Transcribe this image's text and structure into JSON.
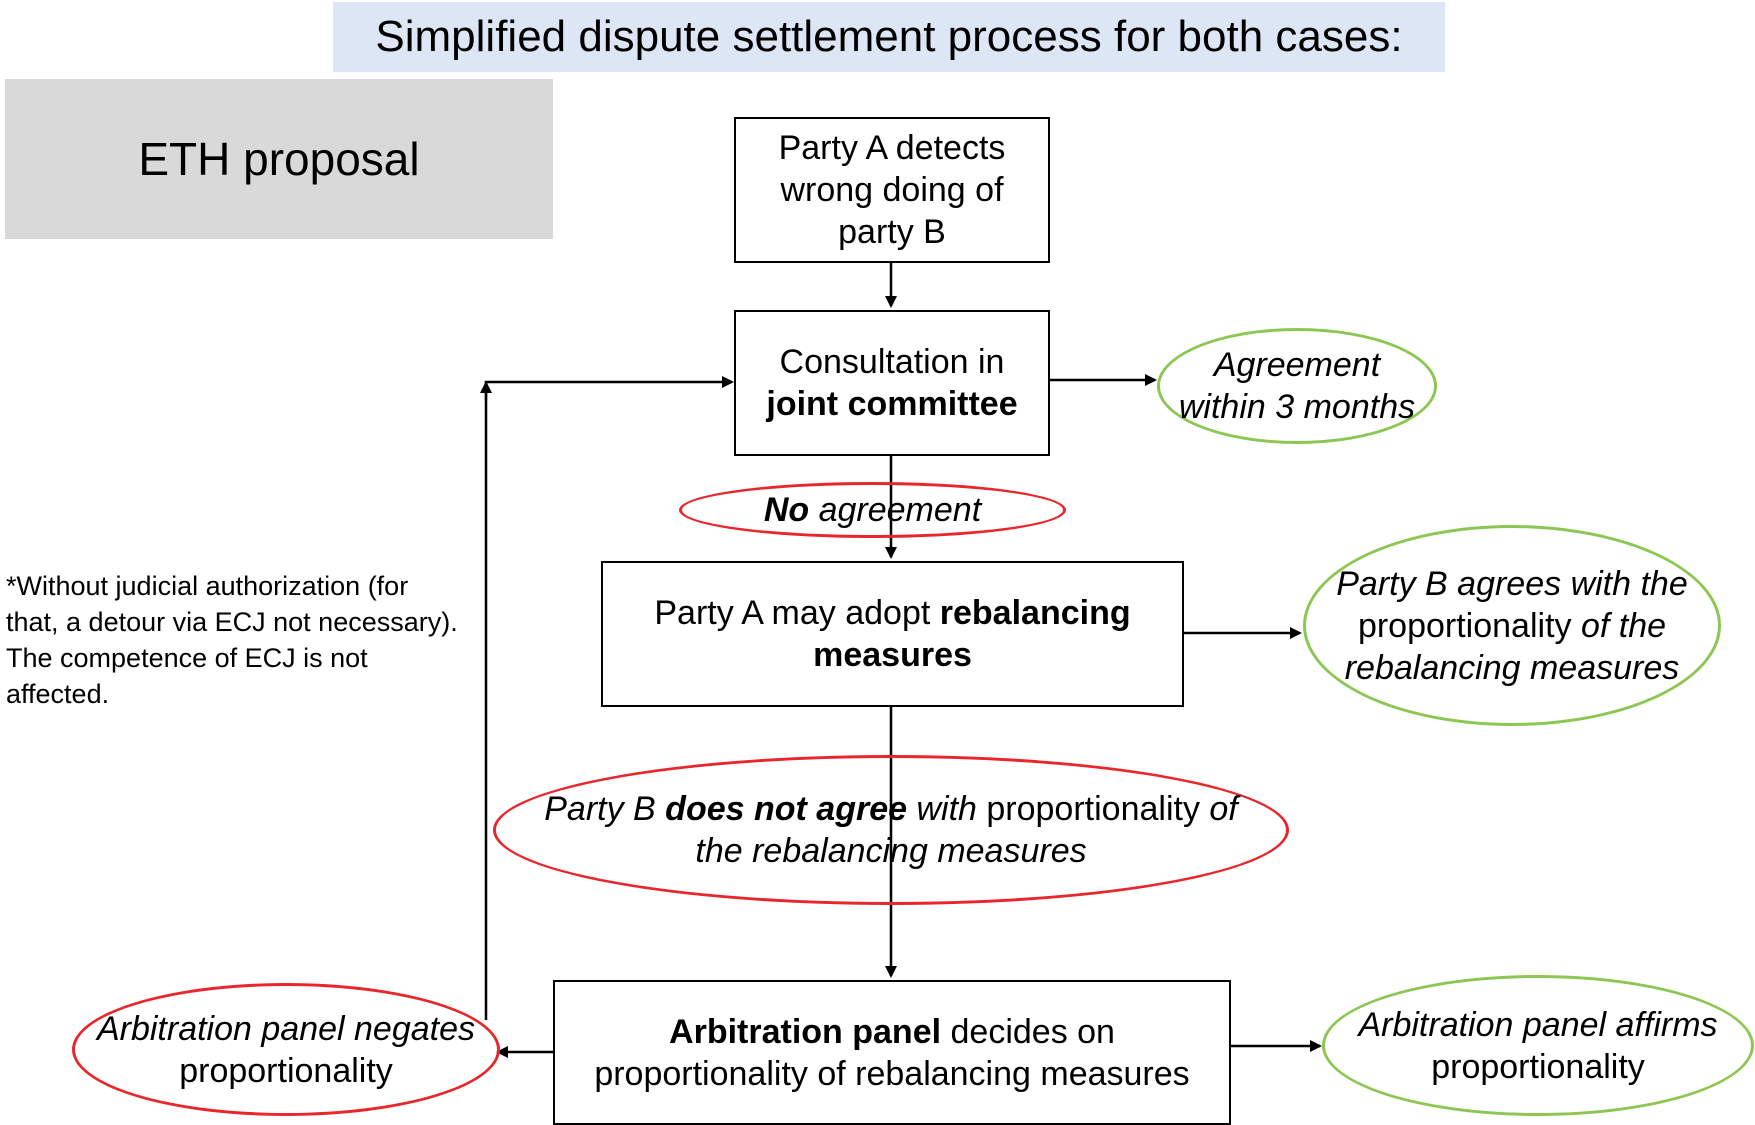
{
  "title": "Simplified dispute settlement process for both cases:",
  "proposal_label": "ETH proposal",
  "boxes": {
    "detect": {
      "line1": "Party A detects",
      "line2": "wrong doing of",
      "line3": "party B"
    },
    "consult": {
      "line1": "Consultation in",
      "line2": "joint committee"
    },
    "rebalance": {
      "pre": "Party A may adopt ",
      "bold1": "rebalancing",
      "bold2": "measures"
    },
    "arbitration": {
      "bold": "Arbitration panel",
      "rest": " decides on",
      "line2": "proportionality of rebalancing measures"
    }
  },
  "ovals": {
    "agreement": {
      "line1": "Agreement",
      "line2": "within 3 months"
    },
    "no_agreement": {
      "bold": "No",
      "rest": " agreement"
    },
    "b_agrees": {
      "line1": "Party B agrees with the",
      "line2_plain": "proportionality",
      "line2_it": " of the",
      "line3": "rebalancing measures"
    },
    "b_disagrees": {
      "pre": "Party B ",
      "bold": "does not agree",
      "mid": " with ",
      "plain": "proportionality",
      "post": " of",
      "line2": "the rebalancing measures"
    },
    "negates": {
      "line1": "Arbitration panel negates",
      "line2": "proportionality"
    },
    "affirms": {
      "line1": "Arbitration panel affirms",
      "line2": "proportionality"
    }
  },
  "note": "*Without judicial authorization (for that, a detour via ECJ not necessary). The competence of ECJ is not affected.",
  "colors": {
    "green": "#8dc653",
    "red": "#e8262b",
    "title_bg": "#dde6f5",
    "proposal_bg": "#d9d9d9"
  }
}
